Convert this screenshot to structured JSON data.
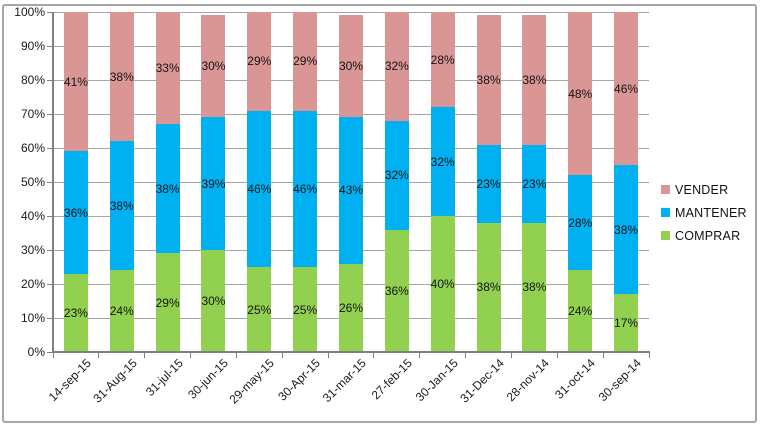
{
  "chart_data": {
    "type": "bar",
    "subtype": "stacked-100-column",
    "title": "",
    "categories": [
      "14-sep-15",
      "31-Aug-15",
      "31-jul-15",
      "30-jun-15",
      "29-may-15",
      "30-Apr-15",
      "31-mar-15",
      "27-feb-15",
      "30-Jan-15",
      "31-Dec-14",
      "28-nov-14",
      "31-oct-14",
      "30-sep-14"
    ],
    "series": [
      {
        "name": "COMPRAR",
        "color": "#92D050",
        "values": [
          23,
          24,
          29,
          30,
          25,
          25,
          26,
          36,
          40,
          38,
          38,
          24,
          17
        ]
      },
      {
        "name": "MANTENER",
        "color": "#00B0F0",
        "values": [
          36,
          38,
          38,
          39,
          46,
          46,
          43,
          32,
          32,
          23,
          23,
          28,
          38
        ]
      },
      {
        "name": "VENDER",
        "color": "#D99694",
        "values": [
          41,
          38,
          33,
          30,
          29,
          29,
          30,
          32,
          28,
          38,
          38,
          48,
          46
        ]
      }
    ],
    "y_ticks": [
      "100%",
      "90%",
      "80%",
      "70%",
      "60%",
      "50%",
      "40%",
      "30%",
      "20%",
      "10%",
      "0%"
    ],
    "ylim": [
      0,
      100
    ],
    "grid": true,
    "data_label_suffix": "%",
    "legend_position": "right",
    "legend_order": [
      "VENDER",
      "MANTENER",
      "COMPRAR"
    ]
  },
  "colors": {
    "vender": "#D99694",
    "mantener": "#00B0F0",
    "comprar": "#92D050",
    "grid": "#A6A6A6",
    "axis": "#808080",
    "text": "#1F1F1F",
    "border": "#A6A6A6",
    "background": "#FFFFFF"
  }
}
